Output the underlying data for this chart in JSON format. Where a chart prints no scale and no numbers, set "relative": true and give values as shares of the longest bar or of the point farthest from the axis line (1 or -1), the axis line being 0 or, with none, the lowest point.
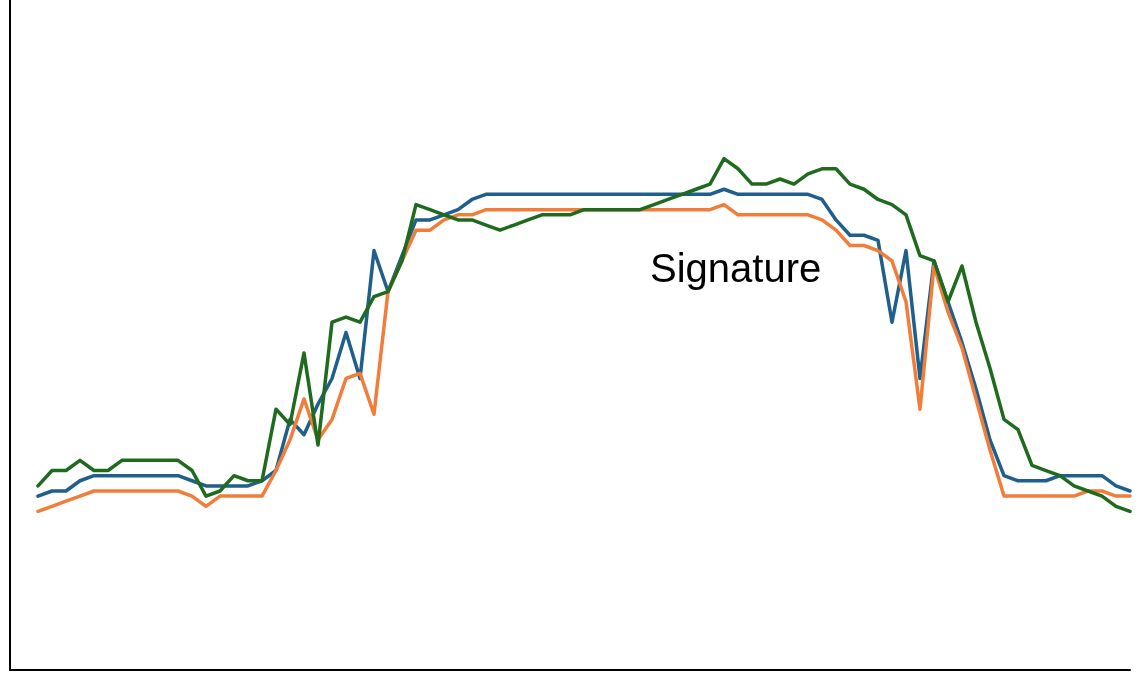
{
  "chart_data": {
    "type": "line",
    "relative": true,
    "annotations": [
      "Signature"
    ],
    "categories": [
      null,
      null,
      null,
      null,
      null,
      null,
      null,
      null,
      null,
      null,
      null,
      null,
      null,
      null,
      null,
      null,
      null,
      null,
      null,
      null,
      null,
      null,
      null,
      null,
      null,
      null,
      null,
      null,
      null,
      null,
      null,
      null,
      null,
      null,
      null,
      null,
      null,
      null,
      null,
      null,
      null,
      null,
      null,
      null,
      null,
      null,
      null,
      null,
      null,
      null,
      null,
      null,
      null,
      null,
      null,
      null,
      null,
      null,
      null,
      null,
      null,
      null,
      null,
      null,
      null,
      null,
      null,
      null,
      null,
      null,
      null,
      null,
      null,
      null,
      null,
      null,
      null,
      null,
      null,
      null,
      null
    ],
    "series": [
      {
        "color": "#1f5f8b",
        "values": [
          null,
          null,
          0.34,
          0.35,
          0.35,
          0.37,
          0.38,
          0.38,
          0.38,
          0.38,
          0.38,
          0.38,
          0.38,
          0.37,
          0.36,
          0.36,
          0.36,
          0.36,
          0.37,
          0.39,
          0.49,
          0.46,
          0.52,
          0.57,
          0.66,
          0.57,
          0.82,
          0.74,
          0.81,
          0.88,
          0.88,
          0.89,
          0.9,
          0.92,
          0.93,
          0.93,
          0.93,
          0.93,
          0.93,
          0.93,
          0.93,
          0.93,
          0.93,
          0.93,
          0.93,
          0.93,
          0.93,
          0.93,
          0.93,
          0.93,
          0.93,
          0.94,
          0.93,
          0.93,
          0.93,
          0.93,
          0.93,
          0.93,
          0.92,
          0.88,
          0.85,
          0.85,
          0.84,
          0.68,
          0.82,
          0.57,
          0.8,
          0.72,
          0.64,
          0.55,
          0.45,
          0.38,
          0.37,
          0.37,
          0.37,
          0.38,
          0.38,
          0.38,
          0.38,
          0.36,
          0.35
        ]
      },
      {
        "color": "#f07d3a",
        "values": [
          null,
          null,
          0.31,
          0.32,
          0.33,
          0.34,
          0.35,
          0.35,
          0.35,
          0.35,
          0.35,
          0.35,
          0.35,
          0.34,
          0.32,
          0.34,
          0.34,
          0.34,
          0.34,
          0.39,
          0.45,
          0.53,
          0.45,
          0.49,
          0.57,
          0.58,
          0.5,
          0.74,
          0.8,
          0.86,
          0.86,
          0.88,
          0.89,
          0.89,
          0.9,
          0.9,
          0.9,
          0.9,
          0.9,
          0.9,
          0.9,
          0.9,
          0.9,
          0.9,
          0.9,
          0.9,
          0.9,
          0.9,
          0.9,
          0.9,
          0.9,
          0.91,
          0.89,
          0.89,
          0.89,
          0.89,
          0.89,
          0.89,
          0.88,
          0.86,
          0.83,
          0.83,
          0.82,
          0.8,
          0.72,
          0.51,
          0.79,
          0.7,
          0.63,
          0.53,
          0.43,
          0.34,
          0.34,
          0.34,
          0.34,
          0.34,
          0.34,
          0.35,
          0.35,
          0.34,
          0.34
        ]
      },
      {
        "color": "#1e6b1e",
        "values": [
          null,
          null,
          0.36,
          0.39,
          0.39,
          0.41,
          0.39,
          0.39,
          0.41,
          0.41,
          0.41,
          0.41,
          0.41,
          0.39,
          0.34,
          0.35,
          0.38,
          0.37,
          0.37,
          0.51,
          0.48,
          0.62,
          0.44,
          0.68,
          0.69,
          0.68,
          0.73,
          0.74,
          0.8,
          0.91,
          0.9,
          0.89,
          0.88,
          0.88,
          0.87,
          0.86,
          0.87,
          0.88,
          0.89,
          0.89,
          0.89,
          0.9,
          0.9,
          0.9,
          0.9,
          0.9,
          0.91,
          0.92,
          0.93,
          0.94,
          0.95,
          1.0,
          0.98,
          0.95,
          0.95,
          0.96,
          0.95,
          0.97,
          0.98,
          0.98,
          0.95,
          0.94,
          0.92,
          0.91,
          0.89,
          0.81,
          0.8,
          0.72,
          0.79,
          0.68,
          0.59,
          0.49,
          0.47,
          0.4,
          0.39,
          0.38,
          0.36,
          0.35,
          0.34,
          0.32,
          0.31
        ]
      }
    ]
  }
}
